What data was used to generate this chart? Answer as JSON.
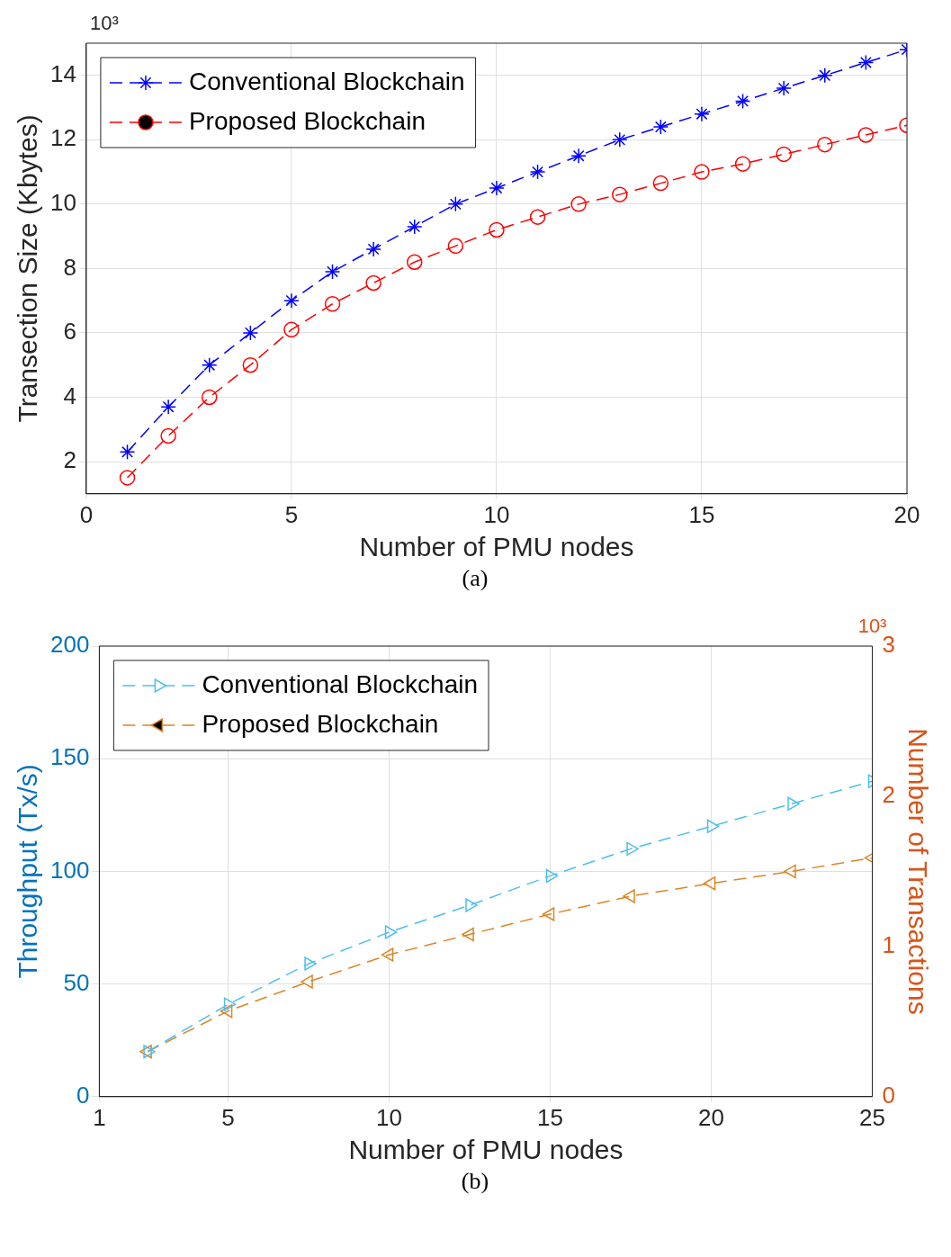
{
  "chart_data": [
    {
      "type": "line",
      "xlabel": "Number of PMU nodes",
      "ylabel": "Transection Size (Kbytes)",
      "annotations": [
        "10³",
        "(a)"
      ],
      "x": [
        1,
        2,
        3,
        4,
        5,
        6,
        7,
        8,
        9,
        10,
        11,
        12,
        13,
        14,
        15,
        16,
        17,
        18,
        19,
        20
      ],
      "series": [
        {
          "name": "Conventional Blockchain",
          "color": "#0000ff",
          "marker": "cross",
          "values": [
            2.3,
            3.7,
            5,
            6,
            7,
            7.9,
            8.6,
            9.3,
            10,
            10.5,
            11,
            11.5,
            12,
            12.4,
            12.8,
            13.2,
            13.6,
            14,
            14.4,
            14.8
          ]
        },
        {
          "name": "Proposed Blockchain",
          "color": "#ff0000",
          "marker": "circle",
          "values": [
            1.5,
            2.8,
            4,
            5,
            6.1,
            6.9,
            7.55,
            8.2,
            8.7,
            9.2,
            9.6,
            10,
            10.3,
            10.65,
            11,
            11.25,
            11.55,
            11.85,
            12.15,
            12.45
          ]
        }
      ],
      "xlim": [
        0,
        20
      ],
      "xticks": [
        0,
        5,
        10,
        15,
        20
      ],
      "ylim": [
        1,
        15
      ],
      "yticks": [
        2,
        4,
        6,
        8,
        10,
        12,
        14
      ],
      "grid": true,
      "legend": "top left",
      "line_style": "dashed"
    },
    {
      "type": "line",
      "xlabel": "Number of PMU nodes",
      "ylabel": "Throughput (Tx/s)",
      "y2label": "Number of Transactions",
      "annotations": [
        "10³",
        "(b)"
      ],
      "x": [
        2.5,
        5,
        7.5,
        10,
        12.5,
        15,
        17.5,
        20,
        22.5,
        25
      ],
      "series": [
        {
          "name": "Conventional Blockchain",
          "color": "#4dbeee",
          "marker": "triangle",
          "values": [
            20,
            41,
            59,
            73,
            85,
            98,
            110,
            120,
            130,
            140
          ]
        },
        {
          "name": "Proposed Blockchain",
          "color": "#d9862a",
          "marker": "triangle",
          "axis": "y2",
          "values": [
            0.3,
            0.57,
            0.765,
            0.945,
            1.08,
            1.215,
            1.335,
            1.42,
            1.5,
            1.59
          ]
        }
      ],
      "xlim": [
        1,
        25
      ],
      "xticks": [
        1,
        5,
        10,
        15,
        20,
        25
      ],
      "ylim": [
        0,
        200
      ],
      "yticks": [
        0,
        50,
        100,
        150,
        200
      ],
      "y2lim": [
        0,
        3
      ],
      "y2ticks": [
        0,
        1,
        2,
        3
      ],
      "grid": true,
      "legend": "top left",
      "line_style": "dashed"
    }
  ]
}
